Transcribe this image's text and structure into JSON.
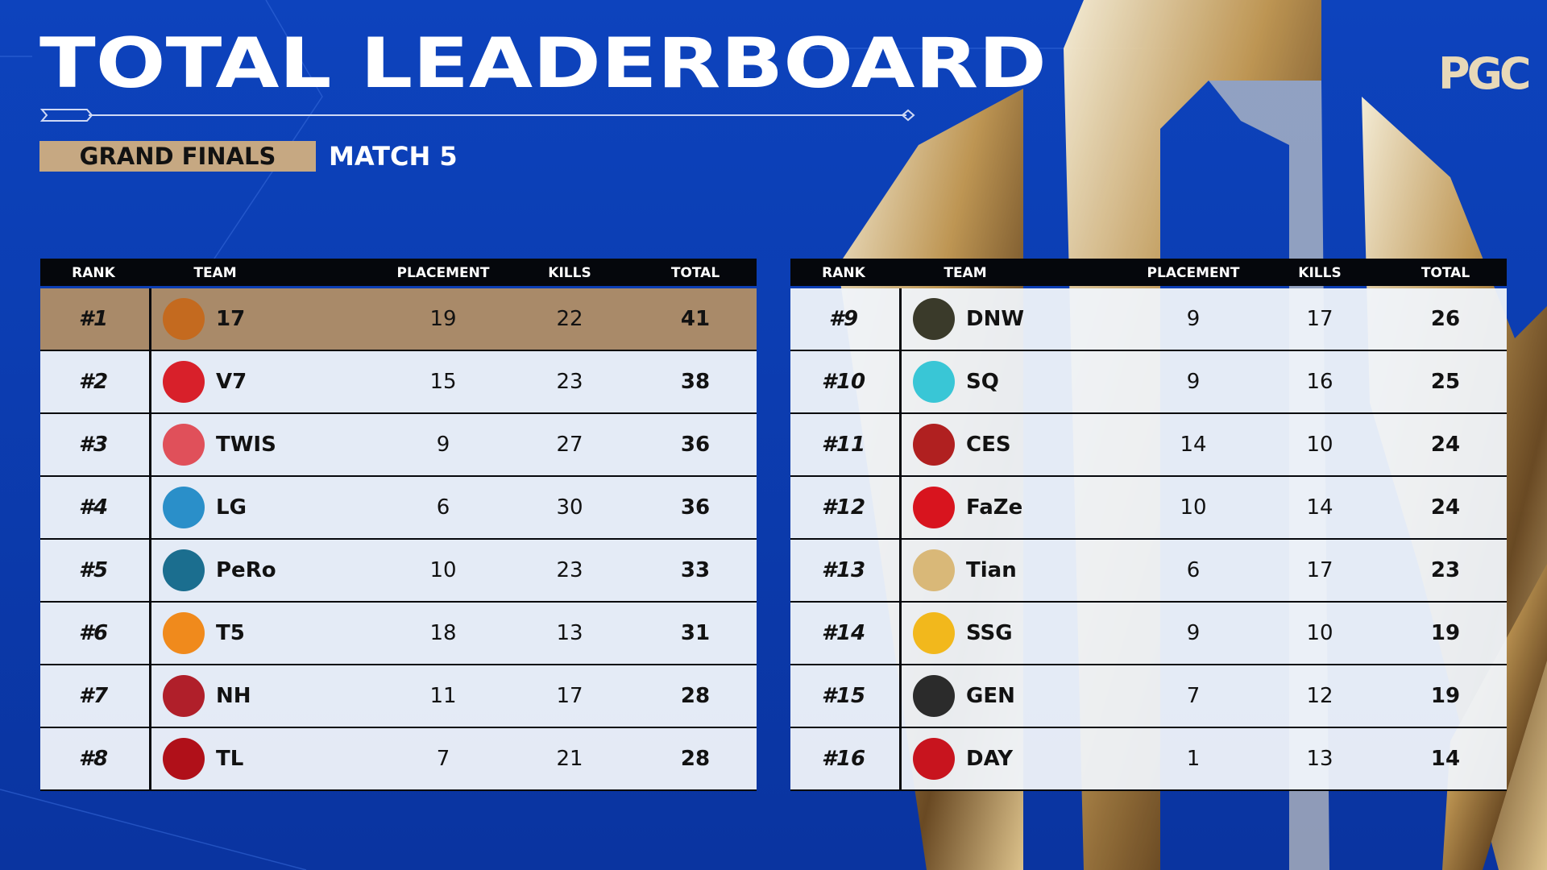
{
  "header": {
    "title": "TOTAL LEADERBOARD",
    "stage": "GRAND FINALS",
    "match": "MATCH 5",
    "logo": "PGC"
  },
  "tables": [
    {
      "columns": [
        "RANK",
        "TEAM",
        "PLACEMENT",
        "KILLS",
        "TOTAL"
      ],
      "rows": [
        [
          "#1",
          "17",
          19,
          22,
          41
        ],
        [
          "#2",
          "V7",
          15,
          23,
          38
        ],
        [
          "#3",
          "TWIS",
          9,
          27,
          36
        ],
        [
          "#4",
          "LG",
          6,
          30,
          36
        ],
        [
          "#5",
          "PeRo",
          10,
          23,
          33
        ],
        [
          "#6",
          "T5",
          18,
          13,
          31
        ],
        [
          "#7",
          "NH",
          11,
          17,
          28
        ],
        [
          "#8",
          "TL",
          7,
          21,
          28
        ]
      ]
    },
    {
      "columns": [
        "RANK",
        "TEAM",
        "PLACEMENT",
        "KILLS",
        "TOTAL"
      ],
      "rows": [
        [
          "#9",
          "DNW",
          9,
          17,
          26
        ],
        [
          "#10",
          "SQ",
          9,
          16,
          25
        ],
        [
          "#11",
          "CES",
          14,
          10,
          24
        ],
        [
          "#12",
          "FaZe",
          10,
          14,
          24
        ],
        [
          "#13",
          "Tian",
          6,
          17,
          23
        ],
        [
          "#14",
          "SSG",
          9,
          10,
          19
        ],
        [
          "#15",
          "GEN",
          7,
          12,
          19
        ],
        [
          "#16",
          "DAY",
          1,
          13,
          14
        ]
      ]
    }
  ]
}
